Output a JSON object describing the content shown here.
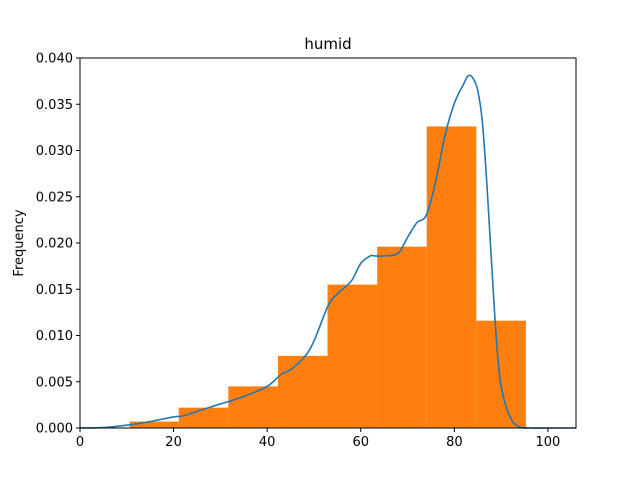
{
  "chart_data": {
    "type": "bar",
    "title": "humid",
    "xlabel": "",
    "ylabel": "Frequency",
    "xlim": [
      0,
      106
    ],
    "ylim": [
      0,
      0.04
    ],
    "x_ticks": [
      0,
      20,
      40,
      60,
      80,
      100
    ],
    "x_tick_labels": [
      "0",
      "20",
      "40",
      "60",
      "80",
      "100"
    ],
    "y_ticks": [
      0,
      0.005,
      0.01,
      0.015,
      0.02,
      0.025,
      0.03,
      0.035,
      0.04
    ],
    "y_tick_labels": [
      "0.000",
      "0.005",
      "0.010",
      "0.015",
      "0.020",
      "0.025",
      "0.030",
      "0.035",
      "0.040"
    ],
    "grid": false,
    "legend": "none",
    "bins": [
      {
        "x0": 10.6,
        "x1": 21.1,
        "value": 0.0007
      },
      {
        "x0": 21.1,
        "x1": 31.7,
        "value": 0.0022
      },
      {
        "x0": 31.7,
        "x1": 42.3,
        "value": 0.0045
      },
      {
        "x0": 42.3,
        "x1": 52.9,
        "value": 0.0078
      },
      {
        "x0": 52.9,
        "x1": 63.5,
        "value": 0.0155
      },
      {
        "x0": 63.5,
        "x1": 74.1,
        "value": 0.0196
      },
      {
        "x0": 74.1,
        "x1": 84.7,
        "value": 0.0326
      },
      {
        "x0": 84.7,
        "x1": 95.3,
        "value": 0.0116
      }
    ],
    "density": {
      "x": [
        0,
        5,
        10,
        15,
        20,
        22,
        25,
        30,
        35,
        40,
        43,
        45,
        48,
        50,
        53,
        55,
        58,
        60,
        62,
        63,
        65,
        68,
        70,
        72,
        74,
        76,
        78,
        80,
        82,
        83,
        84,
        85,
        86,
        87,
        88,
        89,
        90,
        92,
        94,
        96,
        100,
        106
      ],
      "y": [
        0,
        5e-05,
        0.0003,
        0.0007,
        0.0012,
        0.0013,
        0.0018,
        0.0026,
        0.0034,
        0.0045,
        0.0058,
        0.0063,
        0.0077,
        0.0094,
        0.0132,
        0.0145,
        0.0159,
        0.0178,
        0.0186,
        0.0186,
        0.0186,
        0.0189,
        0.0206,
        0.0222,
        0.023,
        0.0266,
        0.0316,
        0.0351,
        0.0372,
        0.0381,
        0.0378,
        0.0365,
        0.033,
        0.026,
        0.0175,
        0.0095,
        0.0045,
        0.0011,
        0.0001,
        0,
        0,
        0
      ]
    },
    "colors": {
      "bars": "#ff7f0e",
      "density": "#1f77b4"
    }
  }
}
